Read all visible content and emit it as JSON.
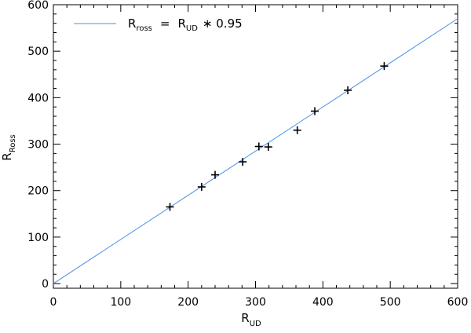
{
  "chart_data": {
    "type": "scatter",
    "xlabel": {
      "main": "R",
      "sub": "UD"
    },
    "ylabel": {
      "main": "R",
      "sub": "Ross"
    },
    "xlim": [
      0,
      600
    ],
    "ylim": [
      -10,
      600
    ],
    "xticks": [
      0,
      100,
      200,
      300,
      400,
      500,
      600
    ],
    "yticks": [
      0,
      100,
      200,
      300,
      400,
      500,
      600
    ],
    "xtick_labels": [
      "0",
      "100",
      "200",
      "300",
      "400",
      "500",
      "600"
    ],
    "ytick_labels": [
      "0",
      "100",
      "200",
      "300",
      "400",
      "500",
      "600"
    ],
    "legend": {
      "position": "top-left",
      "lhs_main": "R",
      "lhs_sub": "ross",
      "equals": "=",
      "rhs_main": "R",
      "rhs_sub": "UD",
      "rhs_tail": "∗ 0.95"
    },
    "fit_line": {
      "slope": 0.95,
      "intercept": 0,
      "color": "#4a90e2"
    },
    "points": [
      {
        "x": 173,
        "y": 165
      },
      {
        "x": 220,
        "y": 208
      },
      {
        "x": 240,
        "y": 234
      },
      {
        "x": 281,
        "y": 262
      },
      {
        "x": 305,
        "y": 295
      },
      {
        "x": 319,
        "y": 294
      },
      {
        "x": 362,
        "y": 330
      },
      {
        "x": 388,
        "y": 371
      },
      {
        "x": 437,
        "y": 416
      },
      {
        "x": 491,
        "y": 468
      }
    ],
    "marker": "plus",
    "marker_color": "#000000"
  }
}
